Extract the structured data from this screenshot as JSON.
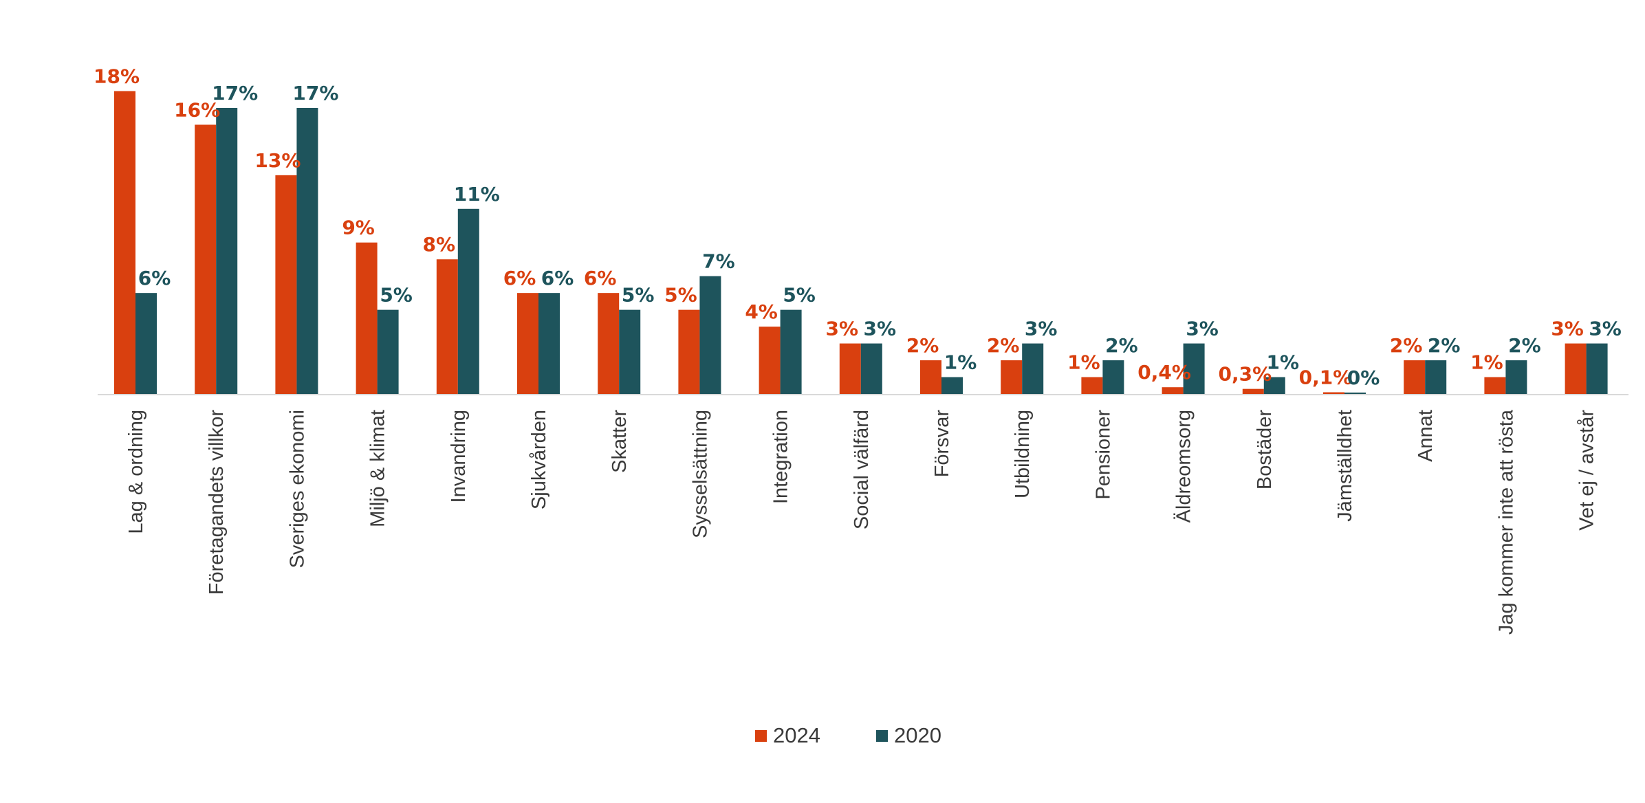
{
  "chart_data": {
    "type": "bar",
    "categories": [
      "Lag & ordning",
      "Företagandets villkor",
      "Sveriges ekonomi",
      "Miljö & klimat",
      "Invandring",
      "Sjukvården",
      "Skatter",
      "Sysselsättning",
      "Integration",
      "Social välfärd",
      "Försvar",
      "Utbildning",
      "Pensioner",
      "Äldreomsorg",
      "Bostäder",
      "Jämställdhet",
      "Annat",
      "Jag kommer inte att rösta",
      "Vet ej / avstår"
    ],
    "series": [
      {
        "name": "2024",
        "color": "#d9400f",
        "values": [
          18,
          16,
          13,
          9,
          8,
          6,
          6,
          5,
          4,
          3,
          2,
          2,
          1,
          0.4,
          0.3,
          0.1,
          2,
          1,
          3
        ],
        "labels": [
          "18%",
          "16%",
          "13%",
          "9%",
          "8%",
          "6%",
          "6%",
          "5%",
          "4%",
          "3%",
          "2%",
          "2%",
          "1%",
          "0,4%",
          "0,3%",
          "0,1%",
          "2%",
          "1%",
          "3%"
        ]
      },
      {
        "name": "2020",
        "color": "#1e545c",
        "values": [
          6,
          17,
          17,
          5,
          11,
          6,
          5,
          7,
          5,
          3,
          1,
          3,
          2,
          3,
          1,
          0,
          2,
          2,
          3
        ],
        "labels": [
          "6%",
          "17%",
          "17%",
          "5%",
          "11%",
          "6%",
          "5%",
          "7%",
          "5%",
          "3%",
          "1%",
          "3%",
          "2%",
          "3%",
          "1%",
          "0%",
          "2%",
          "2%",
          "3%"
        ]
      }
    ],
    "ylim": [
      0,
      19
    ],
    "grid": false,
    "legend": "bottom"
  }
}
